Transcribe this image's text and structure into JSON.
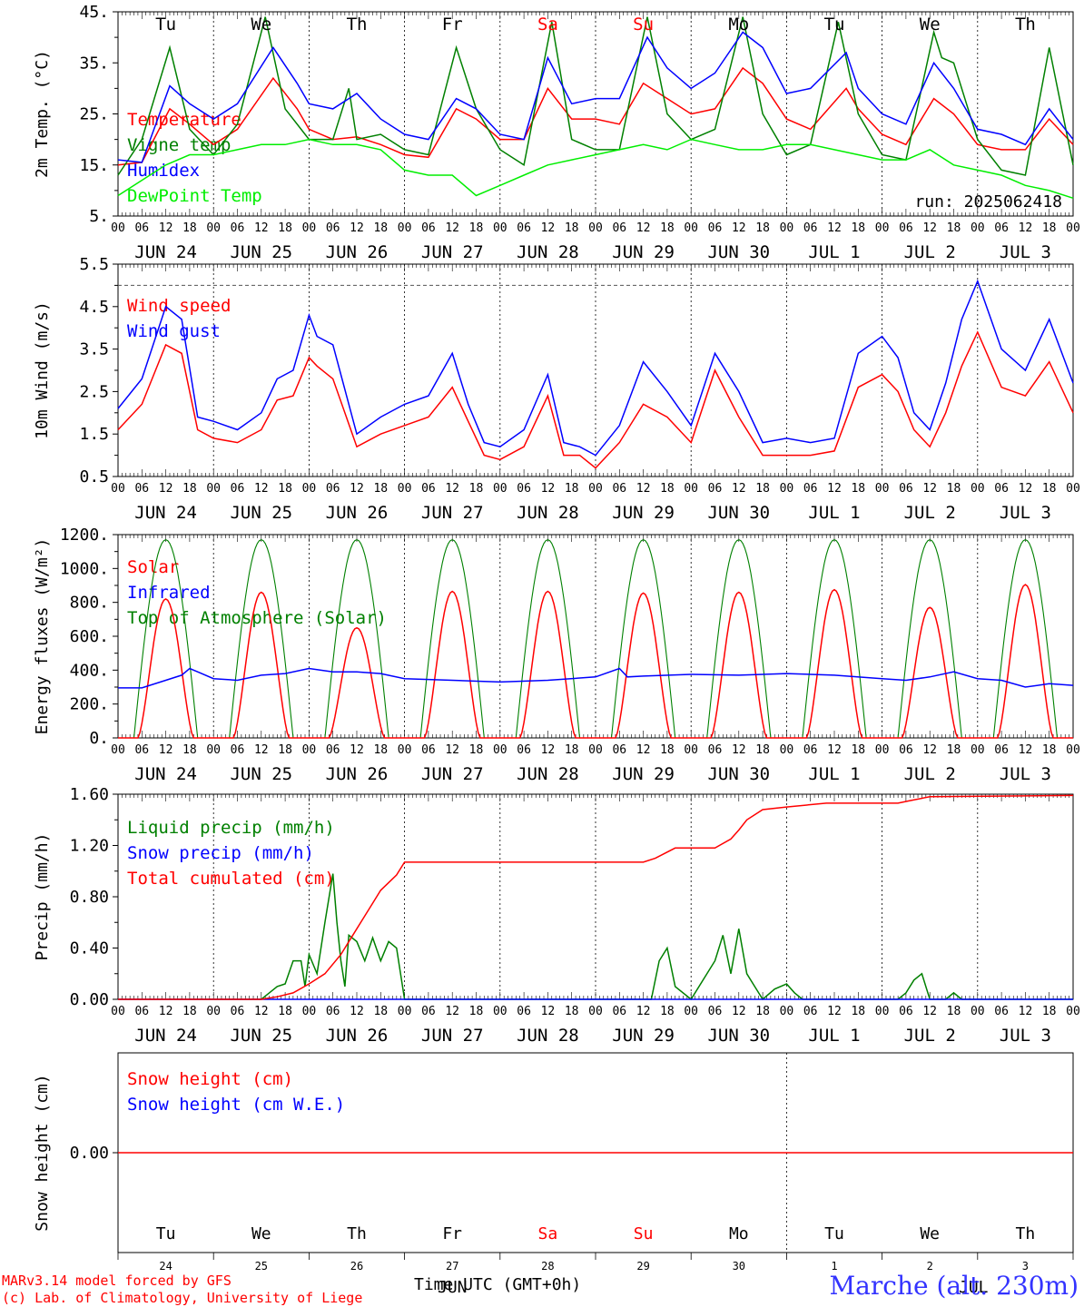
{
  "run_label": "run: 2025062418",
  "credits": {
    "line1": "MARv3.14 model forced by GFS",
    "line2": "(c) Lab. of Climatology, University of Liege"
  },
  "station": "Marche (alt. 230m)",
  "x_axis_title": "Time UTC (GMT+0h)",
  "month_overlay": "JUN",
  "month_overlay2": "JUL",
  "weekdays": [
    {
      "label": "Tu",
      "color": "#000000"
    },
    {
      "label": "We",
      "color": "#000000"
    },
    {
      "label": "Th",
      "color": "#000000"
    },
    {
      "label": "Fr",
      "color": "#000000"
    },
    {
      "label": "Sa",
      "color": "#ff0000"
    },
    {
      "label": "Su",
      "color": "#ff0000"
    },
    {
      "label": "Mo",
      "color": "#000000"
    },
    {
      "label": "Tu",
      "color": "#000000"
    },
    {
      "label": "We",
      "color": "#000000"
    },
    {
      "label": "Th",
      "color": "#000000"
    }
  ],
  "date_labels": [
    "JUN 24",
    "JUN 25",
    "JUN 26",
    "JUN 27",
    "JUN 28",
    "JUN 29",
    "JUN 30",
    "JUL  1",
    "JUL  2",
    "JUL  3"
  ],
  "day_numbers": [
    "24",
    "25",
    "26",
    "27",
    "28",
    "29",
    "30",
    "1",
    "2",
    "3"
  ],
  "hour_ticks": [
    "00",
    "06",
    "12",
    "18"
  ],
  "hour_end": "00",
  "chart_data": [
    {
      "type": "line",
      "ylabel": "2m Temp. (°C)",
      "ylim": [
        5,
        45
      ],
      "yticks": [
        "5.",
        "15.",
        "25.",
        "35.",
        "45."
      ],
      "x_unit": "hours since 2025-06-24 00 UTC",
      "legend": [
        {
          "name": "Temperature",
          "color": "#ff0000"
        },
        {
          "name": "Vigne temp",
          "color": "#008000"
        },
        {
          "name": "Humidex",
          "color": "#0000ff"
        },
        {
          "name": "DewPoint Temp",
          "color": "#00ee00"
        }
      ],
      "series": [
        {
          "name": "Temperature",
          "color": "#ff0000",
          "x": [
            0,
            6,
            13,
            18,
            24,
            30,
            39,
            45,
            48,
            54,
            60,
            66,
            72,
            78,
            85,
            90,
            96,
            102,
            108,
            114,
            120,
            126,
            132,
            138,
            144,
            150,
            157,
            162,
            168,
            174,
            183,
            186,
            192,
            198,
            205,
            210,
            216,
            222,
            228,
            234,
            240
          ],
          "y": [
            15,
            15.5,
            26,
            23,
            19,
            22,
            32,
            26,
            22,
            20,
            20.5,
            19,
            17,
            16.5,
            26,
            24,
            20,
            20,
            30,
            24,
            24,
            23,
            31,
            28,
            25,
            26,
            34,
            31,
            24,
            22,
            30,
            26,
            21,
            19,
            28,
            25,
            19,
            18,
            18,
            24,
            19
          ]
        },
        {
          "name": "Vigne temp",
          "color": "#008000",
          "x": [
            0,
            6,
            13,
            18,
            24,
            30,
            37,
            42,
            48,
            54,
            58,
            60,
            66,
            72,
            78,
            85,
            90,
            96,
            102,
            109,
            114,
            120,
            126,
            133,
            138,
            144,
            150,
            157,
            162,
            168,
            174,
            181,
            186,
            192,
            198,
            205,
            207,
            210,
            216,
            222,
            228,
            234,
            240
          ],
          "y": [
            13,
            20,
            38,
            22,
            17,
            23,
            44,
            26,
            20,
            20,
            30,
            20,
            21,
            18,
            17,
            38,
            26,
            18,
            15,
            43,
            20,
            18,
            18,
            44,
            25,
            20,
            22,
            44,
            25,
            17,
            19,
            43,
            25,
            17,
            16,
            41,
            36,
            35,
            20,
            14,
            13,
            38,
            15
          ]
        },
        {
          "name": "Humidex",
          "color": "#0000ff",
          "x": [
            0,
            6,
            13,
            18,
            24,
            30,
            39,
            45,
            48,
            54,
            60,
            66,
            72,
            78,
            85,
            90,
            96,
            102,
            108,
            114,
            120,
            126,
            133,
            138,
            144,
            150,
            157,
            162,
            168,
            174,
            183,
            186,
            192,
            198,
            205,
            210,
            216,
            222,
            228,
            234,
            240
          ],
          "y": [
            16,
            15.5,
            30.5,
            27,
            24,
            27,
            38,
            31,
            27,
            26,
            29,
            24,
            21,
            20,
            28,
            26,
            21,
            20,
            36,
            27,
            28,
            28,
            40,
            34,
            30,
            33,
            41,
            38,
            29,
            30,
            37,
            30,
            25,
            23,
            35,
            30,
            22,
            21,
            19,
            26,
            20
          ]
        },
        {
          "name": "DewPoint Temp",
          "color": "#00ee00",
          "x": [
            0,
            6,
            12,
            18,
            24,
            30,
            36,
            42,
            48,
            54,
            60,
            66,
            72,
            78,
            84,
            90,
            96,
            102,
            108,
            114,
            120,
            126,
            132,
            138,
            144,
            150,
            156,
            162,
            168,
            174,
            180,
            186,
            192,
            198,
            204,
            210,
            216,
            222,
            228,
            234,
            240
          ],
          "y": [
            9,
            12,
            15,
            17,
            17,
            18,
            19,
            19,
            20,
            19,
            19,
            18,
            14,
            13,
            13,
            9,
            11,
            13,
            15,
            16,
            17,
            18,
            19,
            18,
            20,
            19,
            18,
            18,
            19,
            19,
            18,
            17,
            16,
            16,
            18,
            15,
            14,
            13,
            11,
            10,
            8.5
          ]
        }
      ]
    },
    {
      "type": "line",
      "ylabel": "10m Wind (m/s)",
      "ylim": [
        0.5,
        5.5
      ],
      "yticks": [
        "0.5",
        "1.5",
        "2.5",
        "3.5",
        "4.5",
        "5.5"
      ],
      "reference_line": 5,
      "x_unit": "hours since 2025-06-24 00 UTC",
      "legend": [
        {
          "name": "Wind speed",
          "color": "#ff0000"
        },
        {
          "name": "Wind gust",
          "color": "#0000ff"
        }
      ],
      "series": [
        {
          "name": "Wind speed",
          "color": "#ff0000",
          "x": [
            0,
            6,
            12,
            16,
            20,
            24,
            30,
            36,
            40,
            44,
            48,
            50,
            54,
            60,
            66,
            72,
            78,
            84,
            88,
            92,
            96,
            102,
            108,
            112,
            116,
            120,
            126,
            132,
            138,
            144,
            150,
            156,
            162,
            168,
            174,
            180,
            186,
            192,
            196,
            200,
            204,
            208,
            212,
            216,
            222,
            228,
            234,
            240
          ],
          "y": [
            1.6,
            2.2,
            3.6,
            3.4,
            1.6,
            1.4,
            1.3,
            1.6,
            2.3,
            2.4,
            3.3,
            3.1,
            2.8,
            1.2,
            1.5,
            1.7,
            1.9,
            2.6,
            1.8,
            1,
            0.9,
            1.2,
            2.4,
            1,
            1,
            0.7,
            1.3,
            2.2,
            1.9,
            1.3,
            3,
            1.9,
            1,
            1,
            1,
            1.1,
            2.6,
            2.9,
            2.5,
            1.6,
            1.2,
            2,
            3.1,
            3.9,
            2.6,
            2.4,
            3.2,
            2
          ]
        },
        {
          "name": "Wind gust",
          "color": "#0000ff",
          "x": [
            0,
            6,
            12,
            16,
            20,
            24,
            30,
            36,
            40,
            44,
            48,
            50,
            54,
            60,
            66,
            72,
            78,
            84,
            88,
            92,
            96,
            102,
            108,
            112,
            116,
            120,
            126,
            132,
            138,
            144,
            150,
            156,
            162,
            168,
            174,
            180,
            186,
            192,
            196,
            200,
            204,
            208,
            212,
            216,
            222,
            228,
            234,
            240
          ],
          "y": [
            2.1,
            2.8,
            4.5,
            4.2,
            1.9,
            1.8,
            1.6,
            2,
            2.8,
            3,
            4.3,
            3.8,
            3.6,
            1.5,
            1.9,
            2.2,
            2.4,
            3.4,
            2.2,
            1.3,
            1.2,
            1.6,
            2.9,
            1.3,
            1.2,
            1,
            1.7,
            3.2,
            2.5,
            1.7,
            3.4,
            2.5,
            1.3,
            1.4,
            1.3,
            1.4,
            3.4,
            3.8,
            3.3,
            2,
            1.6,
            2.7,
            4.2,
            5.1,
            3.5,
            3,
            4.2,
            2.7
          ]
        }
      ]
    },
    {
      "type": "line",
      "ylabel": "Energy fluxes (W/m²)",
      "ylim": [
        0,
        1200
      ],
      "yticks": [
        "0.",
        "200.",
        "400.",
        "600.",
        "800.",
        "1000.",
        "1200."
      ],
      "x_unit": "hours since 2025-06-24 00 UTC",
      "legend": [
        {
          "name": "Solar",
          "color": "#ff0000"
        },
        {
          "name": "Infrared",
          "color": "#0000ff"
        },
        {
          "name": "Top of Atmosphere (Solar)",
          "color": "#008000"
        }
      ],
      "toa_daily_peak": 1170,
      "solar_daily_peak": [
        820,
        860,
        650,
        865,
        865,
        855,
        860,
        875,
        770,
        905
      ],
      "series": [
        {
          "name": "Infrared",
          "color": "#0000ff",
          "x": [
            0,
            6,
            12,
            16,
            18,
            20,
            24,
            30,
            36,
            42,
            48,
            54,
            60,
            66,
            72,
            84,
            96,
            108,
            120,
            126,
            128,
            132,
            144,
            156,
            168,
            180,
            192,
            198,
            204,
            210,
            216,
            222,
            228,
            234,
            240
          ],
          "y": [
            295,
            295,
            340,
            370,
            410,
            390,
            350,
            340,
            370,
            380,
            410,
            390,
            390,
            380,
            350,
            340,
            330,
            340,
            360,
            410,
            360,
            365,
            375,
            370,
            380,
            370,
            350,
            340,
            360,
            390,
            350,
            340,
            300,
            320,
            310
          ]
        }
      ]
    },
    {
      "type": "line",
      "ylabel": "Precip (mm/h)",
      "ylim": [
        0,
        1.6
      ],
      "yticks": [
        "0.00",
        "0.40",
        "0.80",
        "1.20",
        "1.60"
      ],
      "x_unit": "hours since 2025-06-24 00 UTC",
      "legend": [
        {
          "name": "Liquid precip (mm/h)",
          "color": "#008000"
        },
        {
          "name": "Snow precip (mm/h)",
          "color": "#0000ff"
        },
        {
          "name": "Total cumulated (cm)",
          "color": "#ff0000"
        }
      ],
      "series": [
        {
          "name": "Liquid precip (mm/h)",
          "color": "#008000",
          "x": [
            0,
            36,
            38,
            40,
            42,
            44,
            46,
            47,
            48,
            50,
            52,
            54,
            55,
            56,
            57,
            58,
            60,
            62,
            64,
            66,
            68,
            70,
            72,
            120,
            134,
            136,
            138,
            140,
            144,
            150,
            152,
            154,
            156,
            158,
            160,
            162,
            165,
            168,
            170,
            172,
            174,
            176,
            192,
            196,
            198,
            200,
            202,
            204,
            208,
            210,
            212,
            240
          ],
          "y": [
            0,
            0,
            0.05,
            0.1,
            0.12,
            0.3,
            0.3,
            0.1,
            0.35,
            0.2,
            0.6,
            0.98,
            0.6,
            0.3,
            0.1,
            0.5,
            0.45,
            0.3,
            0.48,
            0.3,
            0.45,
            0.4,
            0,
            0,
            0,
            0.3,
            0.4,
            0.1,
            0,
            0.3,
            0.5,
            0.2,
            0.55,
            0.2,
            0.1,
            0,
            0.08,
            0.12,
            0.05,
            0,
            0,
            0,
            0,
            0,
            0.05,
            0.15,
            0.2,
            0,
            0,
            0.05,
            0,
            0
          ]
        },
        {
          "name": "Snow precip (mm/h)",
          "color": "#0000ff",
          "x": [
            0,
            240
          ],
          "y": [
            0,
            0
          ]
        },
        {
          "name": "Total cumulated (cm)",
          "color": "#ff0000",
          "x": [
            0,
            36,
            40,
            44,
            48,
            52,
            56,
            60,
            64,
            66,
            70,
            72,
            132,
            135,
            140,
            144,
            150,
            154,
            156,
            158,
            162,
            168,
            178,
            192,
            196,
            199,
            204,
            240
          ],
          "y": [
            0,
            0,
            0.02,
            0.05,
            0.12,
            0.2,
            0.35,
            0.55,
            0.75,
            0.85,
            0.97,
            1.07,
            1.07,
            1.1,
            1.18,
            1.18,
            1.18,
            1.25,
            1.32,
            1.4,
            1.48,
            1.5,
            1.53,
            1.53,
            1.53,
            1.55,
            1.58,
            1.59
          ]
        }
      ]
    },
    {
      "type": "line",
      "ylabel": "Snow height (cm)",
      "ylim": [
        -1,
        1
      ],
      "yticks": [
        "0.00"
      ],
      "x_unit": "hours since 2025-06-24 00 UTC",
      "legend": [
        {
          "name": "Snow height (cm)",
          "color": "#ff0000"
        },
        {
          "name": "Snow height (cm W.E.)",
          "color": "#0000ff"
        }
      ],
      "series": [
        {
          "name": "Snow height (cm)",
          "color": "#ff0000",
          "x": [
            0,
            240
          ],
          "y": [
            0,
            0
          ]
        }
      ]
    }
  ]
}
